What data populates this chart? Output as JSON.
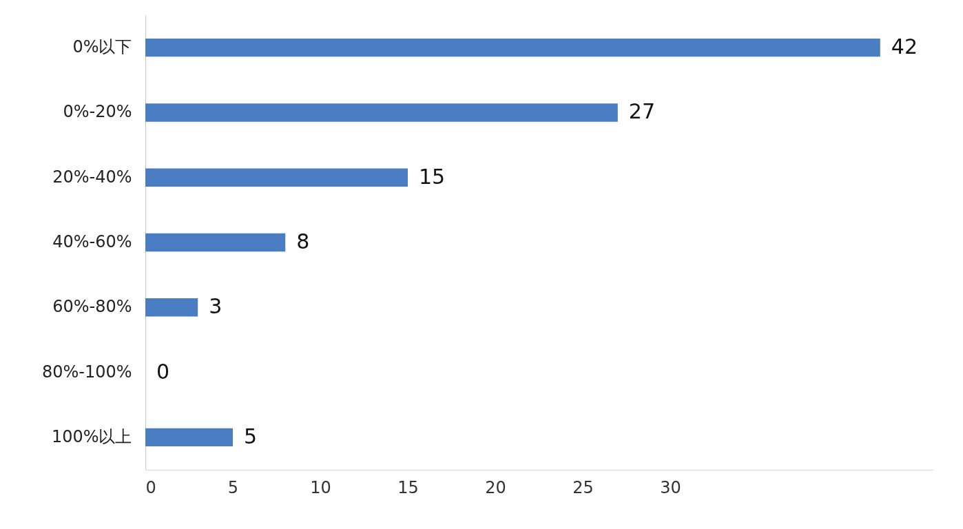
{
  "chart_data": {
    "type": "bar",
    "orientation": "horizontal",
    "categories": [
      "0%以下",
      "0%-20%",
      "20%-40%",
      "40%-60%",
      "60%-80%",
      "80%-100%",
      "100%以上"
    ],
    "values": [
      42,
      27,
      15,
      8,
      3,
      0,
      5
    ],
    "color": "#4a7dc2",
    "xlim": [
      0,
      45
    ],
    "xticks": [
      0,
      5,
      10,
      15,
      20,
      25,
      30
    ],
    "data_labels": true,
    "grid": false
  }
}
